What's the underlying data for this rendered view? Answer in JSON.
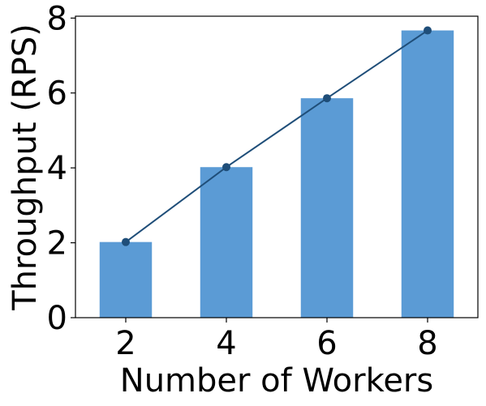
{
  "chart_data": {
    "type": "bar",
    "xlabel": "Number of Workers",
    "ylabel": "Throughput (RPS)",
    "categories": [
      "2",
      "4",
      "6",
      "8"
    ],
    "x_ticks": [
      "2",
      "4",
      "6",
      "8"
    ],
    "y_ticks": [
      "0",
      "2",
      "4",
      "6",
      "8"
    ],
    "ylim": [
      0,
      8.05
    ],
    "series": [
      {
        "type": "bar",
        "values": [
          2.02,
          4.02,
          5.86,
          7.67
        ],
        "color": "#5b9bd5"
      },
      {
        "type": "line",
        "values": [
          2.02,
          4.02,
          5.86,
          7.67
        ],
        "color": "#1f4e79",
        "marker": "circle"
      }
    ],
    "grid": false,
    "legend": "none"
  }
}
